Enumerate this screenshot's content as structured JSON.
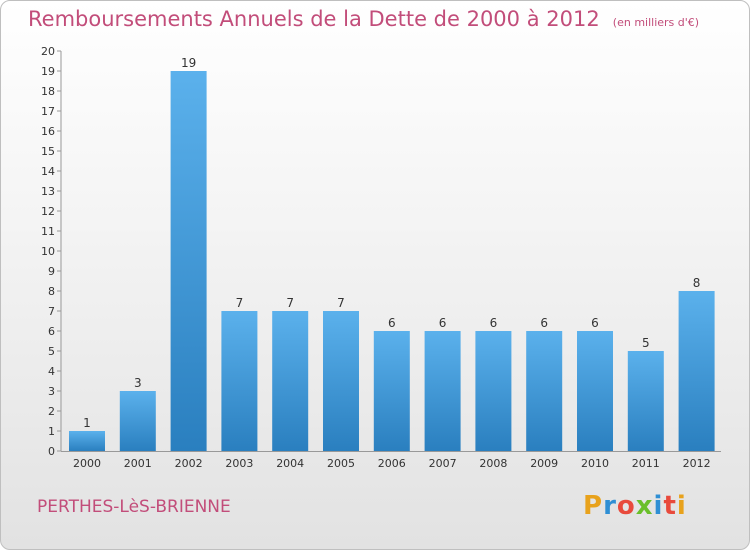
{
  "title": "Remboursements Annuels de la Dette de 2000 à 2012",
  "unit": "(en milliers d'€)",
  "commune": "PERTHES-LèS-BRIENNE",
  "logo": {
    "letters": [
      "P",
      "r",
      "o",
      "x",
      "i",
      "t",
      "i"
    ],
    "colors": [
      "#e8a21c",
      "#2f8fd4",
      "#e84a3c",
      "#6abf2a",
      "#2f8fd4",
      "#e84a3c",
      "#e8a21c"
    ]
  },
  "colors": {
    "bar": "#3d9ee0",
    "title": "#c24d7a",
    "text": "#333333"
  },
  "chart_data": {
    "type": "bar",
    "categories": [
      "2000",
      "2001",
      "2002",
      "2003",
      "2004",
      "2005",
      "2006",
      "2007",
      "2008",
      "2009",
      "2010",
      "2011",
      "2012"
    ],
    "values": [
      1,
      3,
      19,
      7,
      7,
      7,
      6,
      6,
      6,
      6,
      6,
      5,
      8
    ],
    "ylim": [
      0,
      20
    ],
    "yticks": [
      0,
      1,
      2,
      3,
      4,
      5,
      6,
      7,
      8,
      9,
      10,
      11,
      12,
      13,
      14,
      15,
      16,
      17,
      18,
      19,
      20
    ],
    "data_labels": true,
    "grid": false
  }
}
